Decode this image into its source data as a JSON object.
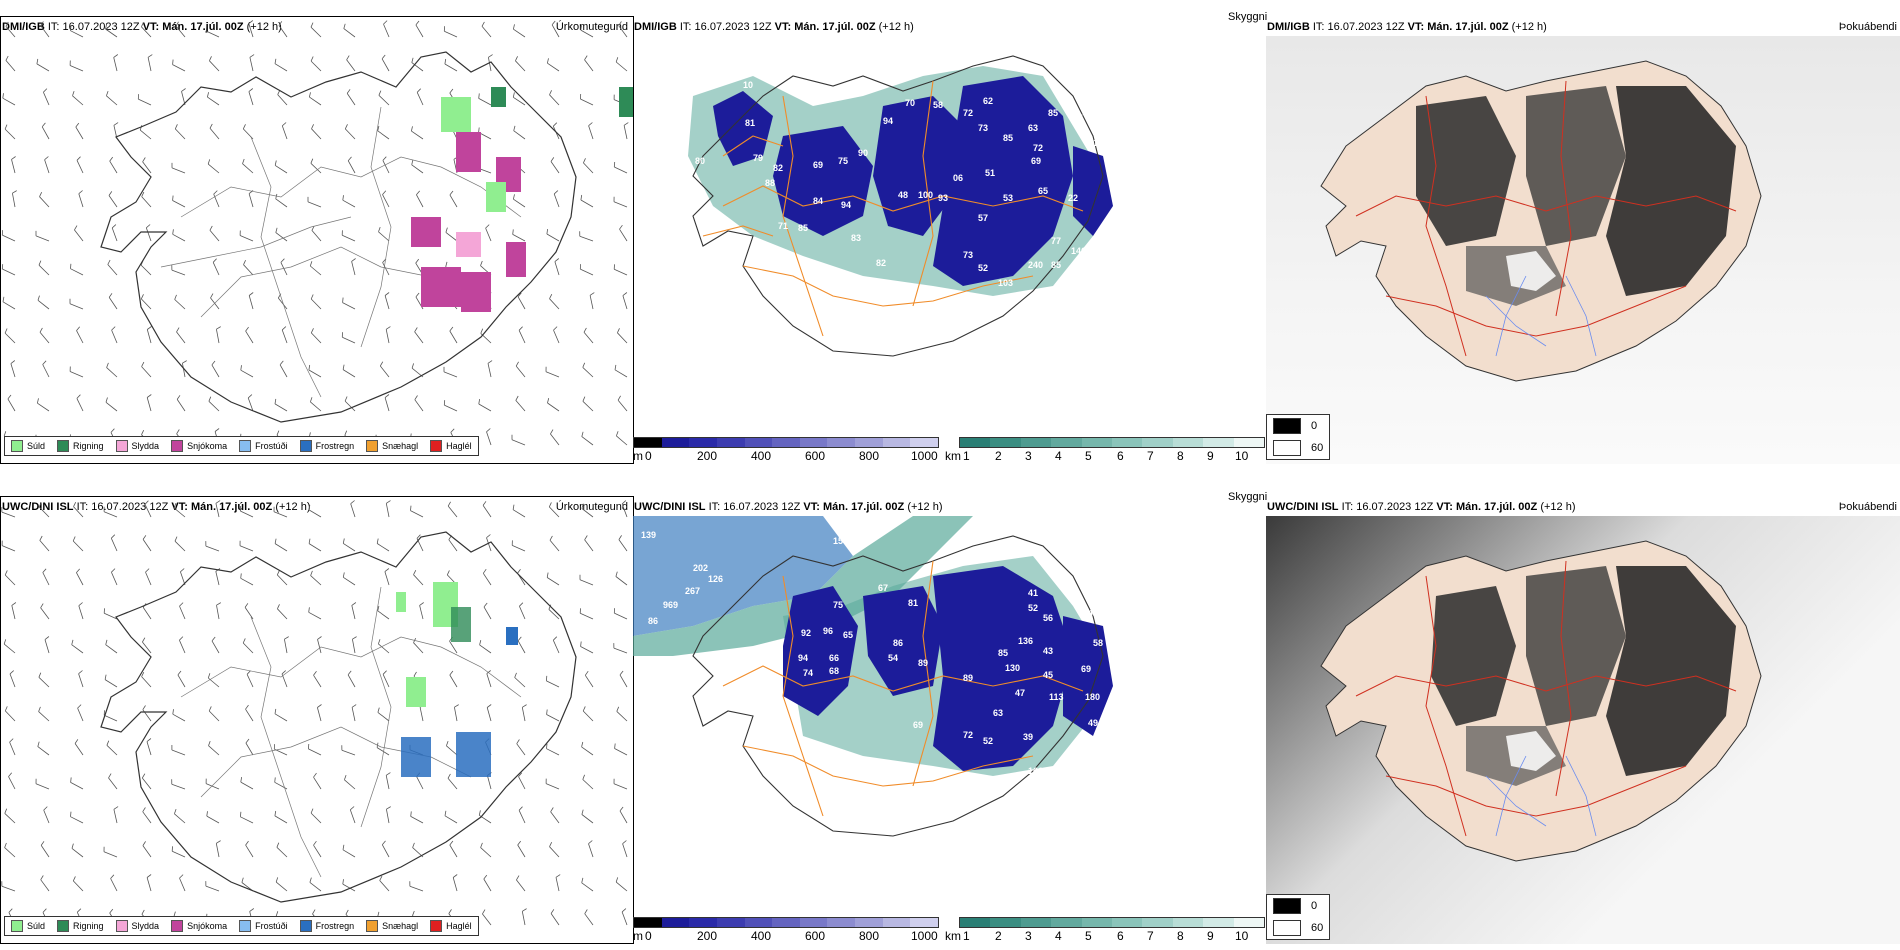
{
  "panels": {
    "top_left": {
      "model": "DMI/IGB",
      "it_label": "IT:",
      "it_value": "16.07.2023 12Z",
      "vt_label": "VT:",
      "vt_value": "Mán. 17.júl. 00Z",
      "lead": "(+12 h)",
      "right_title": "Úrkomutegund"
    },
    "top_mid": {
      "model": "DMI/IGB",
      "it_label": "IT:",
      "it_value": "16.07.2023 12Z",
      "vt_label": "VT:",
      "vt_value": "Mán. 17.júl. 00Z",
      "lead": "(+12 h)",
      "right_title": "Skyggni"
    },
    "top_right": {
      "model": "DMI/IGB",
      "it_label": "IT:",
      "it_value": "16.07.2023 12Z",
      "vt_label": "VT:",
      "vt_value": "Mán. 17.júl. 00Z",
      "lead": "(+12 h)",
      "right_title": "Þokuábendi"
    },
    "bot_left": {
      "model": "UWC/DINI ISL",
      "it_label": "IT:",
      "it_value": "16.07.2023 12Z",
      "vt_label": "VT:",
      "vt_value": "Mán. 17.júl. 00Z",
      "lead": "(+12 h)",
      "right_title": "Úrkomutegund"
    },
    "bot_mid": {
      "model": "UWC/DINI ISL",
      "it_label": "IT:",
      "it_value": "16.07.2023 12Z",
      "vt_label": "VT:",
      "vt_value": "Mán. 17.júl. 00Z",
      "lead": "(+12 h)",
      "right_title": "Skyggni"
    },
    "bot_right": {
      "model": "UWC/DINI ISL",
      "it_label": "IT:",
      "it_value": "16.07.2023 12Z",
      "vt_label": "VT:",
      "vt_value": "Mán. 17.júl. 00Z",
      "lead": "(+12 h)",
      "right_title": "Þokuábendi"
    }
  },
  "ptype_legend": [
    {
      "label": "Súld",
      "color": "#90ee90"
    },
    {
      "label": "Rigning",
      "color": "#2e8b57"
    },
    {
      "label": "Slydda",
      "color": "#f4a6d7"
    },
    {
      "label": "Snjókoma",
      "color": "#c0449c"
    },
    {
      "label": "Frostúði",
      "color": "#87bdf0"
    },
    {
      "label": "Frostregn",
      "color": "#2a6fc0"
    },
    {
      "label": "Snæhagl",
      "color": "#f0a030"
    },
    {
      "label": "Haglél",
      "color": "#e02020"
    }
  ],
  "scale_m": {
    "unit": "m",
    "ticks": [
      "0",
      "200",
      "400",
      "600",
      "800",
      "1000"
    ]
  },
  "scale_km": {
    "unit": "km",
    "ticks": [
      "1",
      "2",
      "3",
      "4",
      "5",
      "6",
      "7",
      "8",
      "9",
      "10"
    ]
  },
  "fog_legend": {
    "values": [
      "0",
      "60"
    ]
  },
  "vis_numbers_top": [
    "10",
    "81",
    "79",
    "80",
    "82",
    "88",
    "69",
    "75",
    "90",
    "94",
    "70",
    "58",
    "72",
    "62",
    "73",
    "85",
    "63",
    "85",
    "75",
    "72",
    "69",
    "71",
    "48",
    "100",
    "93",
    "06",
    "51",
    "53",
    "65",
    "22",
    "79",
    "06",
    "84",
    "94",
    "71",
    "85",
    "83",
    "57",
    "73",
    "52",
    "103",
    "240",
    "77",
    "85",
    "146",
    "82"
  ],
  "vis_numbers_bot": [
    "139",
    "155",
    "202",
    "126",
    "267",
    "969",
    "86",
    "75",
    "92",
    "94",
    "96",
    "65",
    "74",
    "66",
    "68",
    "67",
    "81",
    "86",
    "54",
    "89",
    "41",
    "52",
    "56",
    "42",
    "66",
    "58",
    "136",
    "43",
    "45",
    "69",
    "152",
    "47",
    "113",
    "180",
    "63",
    "52",
    "39",
    "49",
    "166",
    "40",
    "72",
    "69",
    "89",
    "85",
    "130"
  ]
}
